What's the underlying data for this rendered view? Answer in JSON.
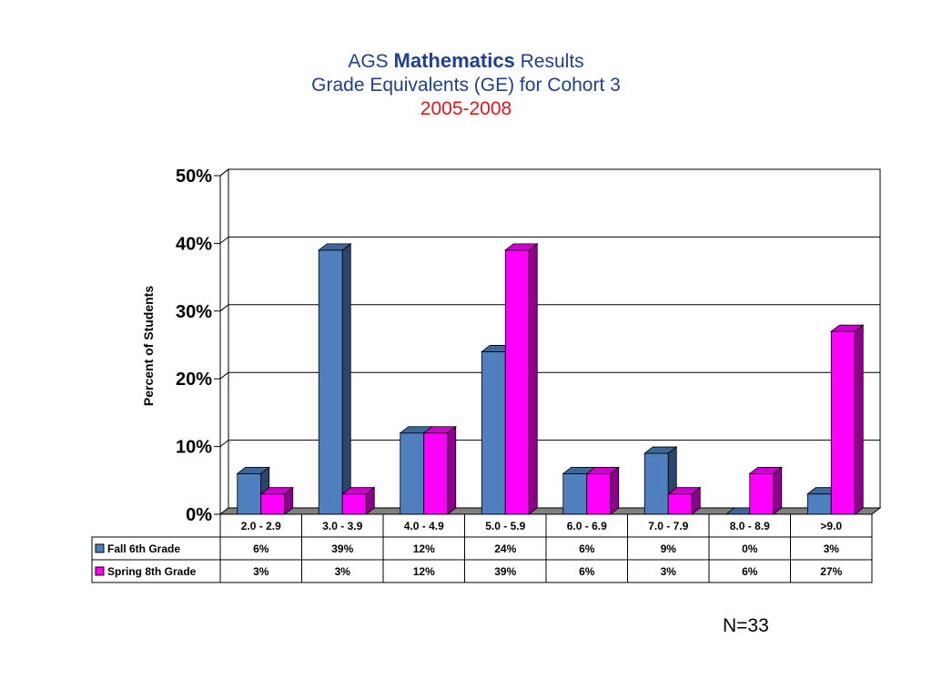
{
  "header": {
    "title_prefix": "AGS",
    "title_bold": "Mathematics",
    "title_suffix": "Results",
    "subtitle": "Grade Equivalents (GE) for Cohort 3",
    "years": "2005-2008"
  },
  "footnote": "N=33",
  "chart_data": {
    "type": "bar",
    "categories": [
      "2.0 - 2.9",
      "3.0 - 3.9",
      "4.0 - 4.9",
      "5.0 - 5.9",
      "6.0 - 6.9",
      "7.0 - 7.9",
      "8.0 - 8.9",
      ">9.0"
    ],
    "series": [
      {
        "name": "Fall 6th Grade",
        "values": [
          6,
          39,
          12,
          24,
          6,
          9,
          0,
          3
        ],
        "labels": [
          "6%",
          "39%",
          "12%",
          "24%",
          "6%",
          "9%",
          "0%",
          "3%"
        ],
        "color": "#4f7fbf"
      },
      {
        "name": "Spring 8th Grade",
        "values": [
          3,
          3,
          12,
          39,
          6,
          3,
          6,
          27
        ],
        "labels": [
          "3%",
          "3%",
          "12%",
          "39%",
          "6%",
          "3%",
          "6%",
          "27%"
        ],
        "color": "#ff00ff"
      }
    ],
    "ylabel": "Percent of Students",
    "ylim": [
      0,
      50
    ],
    "yticks": [
      0,
      10,
      20,
      30,
      40,
      50
    ],
    "ytick_labels": [
      "0%",
      "10%",
      "20%",
      "30%",
      "40%",
      "50%"
    ],
    "grid": true,
    "legend": "data-table"
  }
}
